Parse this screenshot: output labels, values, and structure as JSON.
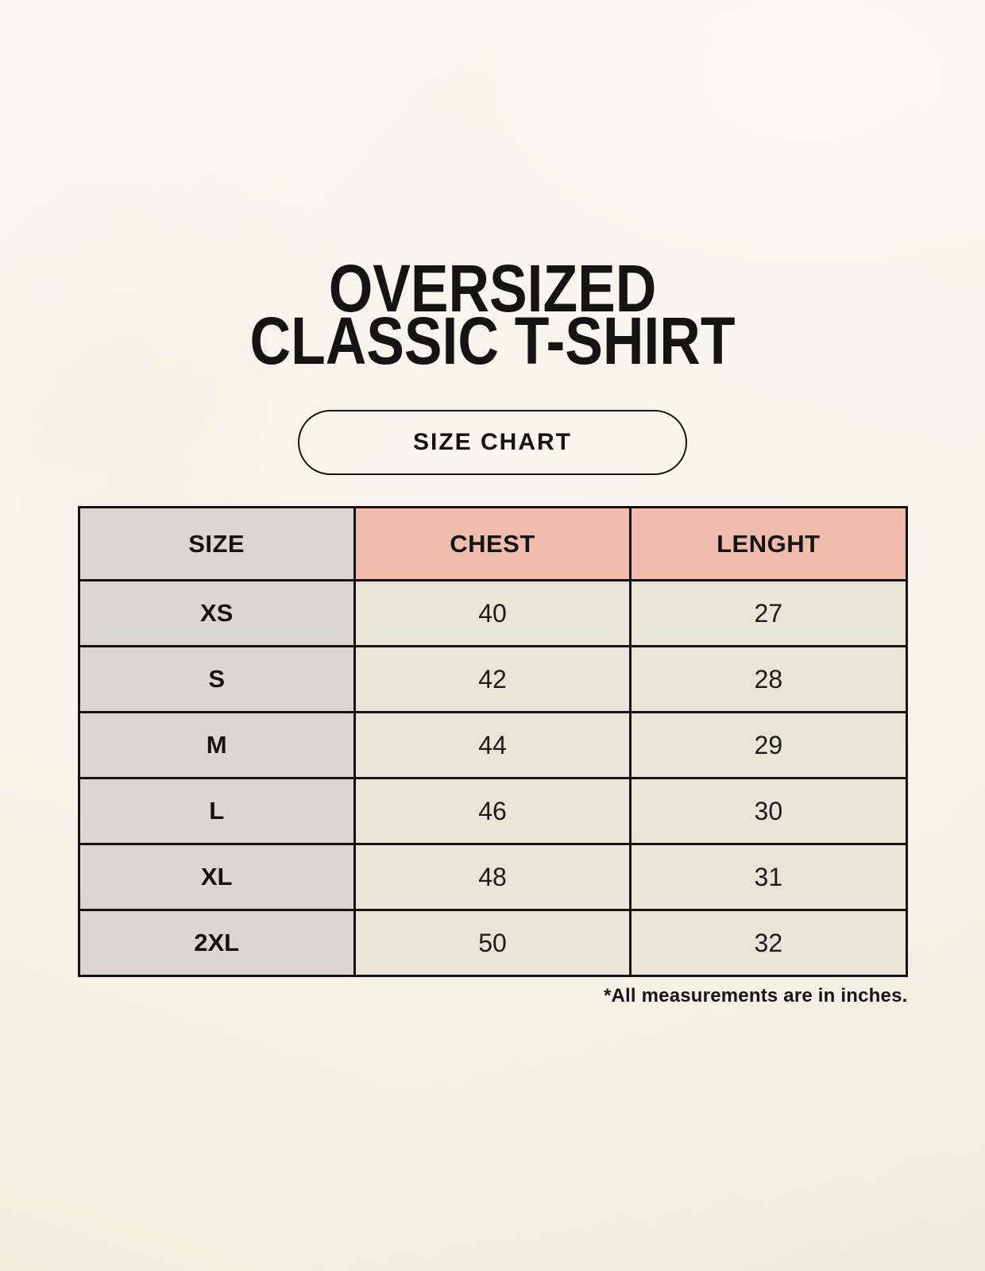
{
  "header": {
    "title_line1": "OVERSIZED",
    "title_line2": "CLASSIC T-SHIRT",
    "badge_label": "SIZE CHART"
  },
  "footnote": "*All measurements are in inches.",
  "colors": {
    "page_background": "#F8F4EC",
    "header_accent_salmon": "#F0BCAD",
    "size_column_gray": "#DDD6D0",
    "data_cell_cream": "#EAE3D8",
    "border_black": "#141414",
    "text_black": "#141414"
  },
  "chart_data": {
    "type": "table",
    "title": "OVERSIZED CLASSIC T-SHIRT",
    "subtitle": "SIZE CHART",
    "columns": [
      "SIZE",
      "CHEST",
      "LENGHT"
    ],
    "rows": [
      [
        "XS",
        "40",
        "27"
      ],
      [
        "S",
        "42",
        "28"
      ],
      [
        "M",
        "44",
        "29"
      ],
      [
        "L",
        "46",
        "30"
      ],
      [
        "XL",
        "48",
        "31"
      ],
      [
        "2XL",
        "50",
        "32"
      ]
    ],
    "note": "*All measurements are in inches."
  }
}
